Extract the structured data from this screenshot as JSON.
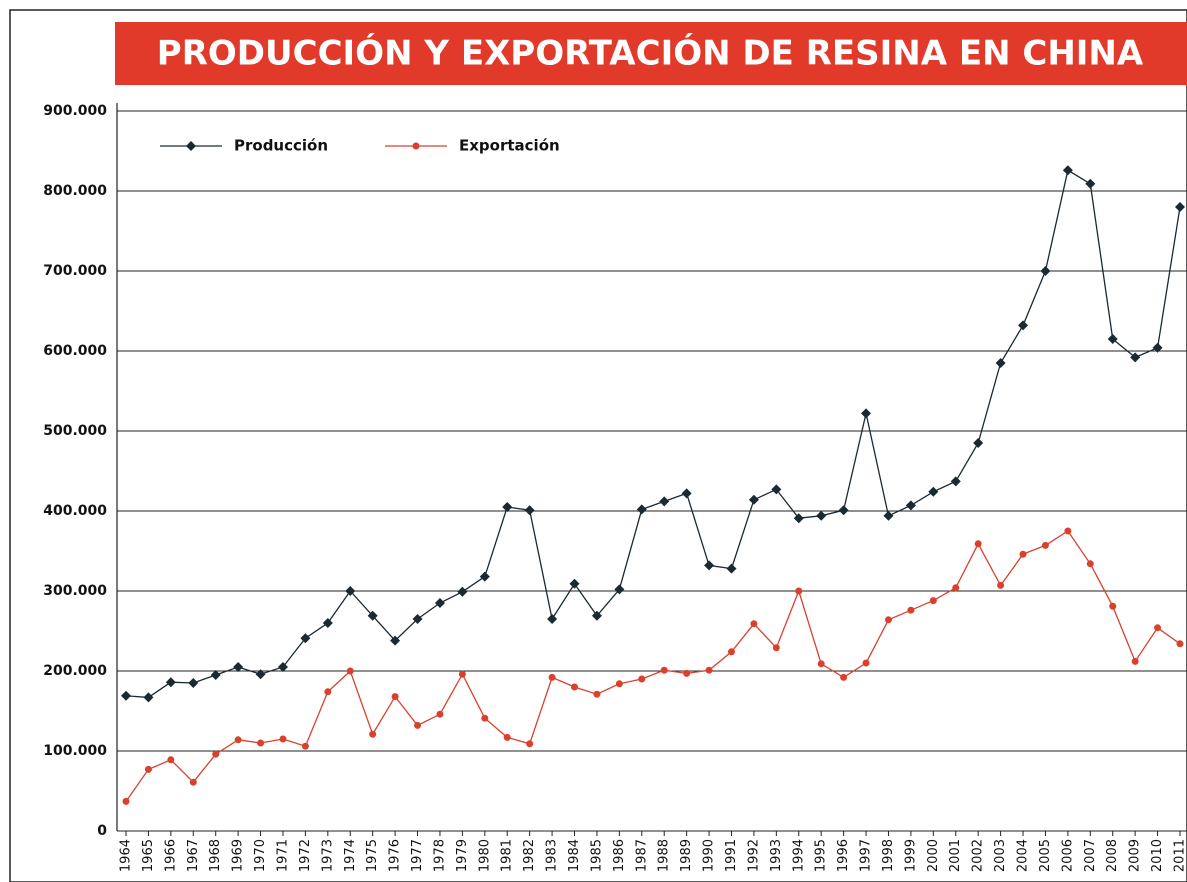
{
  "chart_data": {
    "type": "line",
    "title": "PRODUCCIÓN Y EXPORTACIÓN DE RESINA EN CHINA",
    "categories": [
      "1964",
      "1965",
      "1966",
      "1967",
      "1968",
      "1969",
      "1970",
      "1971",
      "1972",
      "1973",
      "1974",
      "1975",
      "1976",
      "1977",
      "1978",
      "1979",
      "1980",
      "1981",
      "1982",
      "1983",
      "1984",
      "1985",
      "1986",
      "1987",
      "1988",
      "1989",
      "1990",
      "1991",
      "1992",
      "1993",
      "1994",
      "1995",
      "1996",
      "1997",
      "1998",
      "1999",
      "2000",
      "2001",
      "2002",
      "2003",
      "2004",
      "2005",
      "2006",
      "2007",
      "2008",
      "2009",
      "2010",
      "2011"
    ],
    "series": [
      {
        "name": "Producción",
        "color": "#1a2a33",
        "marker": "diamond",
        "values": [
          169000,
          167000,
          186000,
          185000,
          195000,
          205000,
          196000,
          205000,
          241000,
          260000,
          300000,
          269000,
          238000,
          265000,
          285000,
          299000,
          318000,
          405000,
          401000,
          265000,
          309000,
          269000,
          302000,
          402000,
          412000,
          422000,
          332000,
          328000,
          414000,
          427000,
          391000,
          394000,
          401000,
          522000,
          394000,
          407000,
          424000,
          437000,
          485000,
          585000,
          632000,
          700000,
          826000,
          809000,
          615000,
          592000,
          604000,
          780000
        ]
      },
      {
        "name": "Exportación",
        "color": "#d9412e",
        "marker": "circle",
        "values": [
          37000,
          77000,
          89000,
          61000,
          96000,
          114000,
          110000,
          115000,
          106000,
          174000,
          200000,
          121000,
          168000,
          132000,
          146000,
          196000,
          141000,
          117000,
          109000,
          192000,
          180000,
          171000,
          184000,
          190000,
          201000,
          197000,
          201000,
          224000,
          259000,
          229000,
          300000,
          209000,
          192000,
          210000,
          264000,
          276000,
          288000,
          304000,
          359000,
          307000,
          346000,
          357000,
          375000,
          334000,
          281000,
          212000,
          254000,
          234000
        ]
      }
    ],
    "ylim": [
      0,
      900000
    ],
    "yticks": [
      0,
      {
        "value": 100000,
        "label": "100.000"
      },
      {
        "value": 200000,
        "label": "200.000"
      },
      {
        "value": 300000,
        "label": "300.000"
      },
      {
        "value": 400000,
        "label": "400.000"
      },
      {
        "value": 500000,
        "label": "500.000"
      },
      {
        "value": 600000,
        "label": "600.000"
      },
      {
        "value": 700000,
        "label": "700.000"
      },
      {
        "value": 800000,
        "label": "800.000"
      },
      {
        "value": 900000,
        "label": "900.000"
      }
    ],
    "grid": true,
    "legend": "upper-left",
    "title_background": "#e23a2a"
  }
}
